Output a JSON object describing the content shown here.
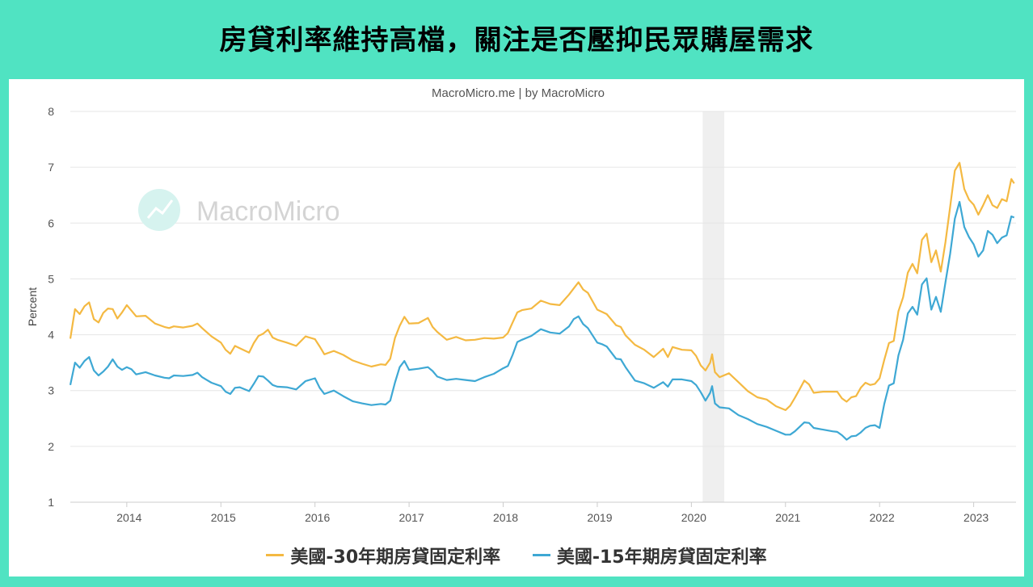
{
  "page": {
    "title": "房貸利率維持高檔，關注是否壓抑民眾購屋需求",
    "background_color": "#50e3c2"
  },
  "chart_data": {
    "type": "line",
    "subtitle": "MacroMicro.me | by MacroMicro",
    "watermark": "MacroMicro",
    "ylabel": "Percent",
    "xlabel": "",
    "ylim": [
      1,
      8
    ],
    "yticks": [
      "1",
      "2",
      "3",
      "4",
      "5",
      "6",
      "7",
      "8"
    ],
    "xlim": [
      2013.4,
      2023.45
    ],
    "xticks": [
      "2014",
      "2015",
      "2016",
      "2017",
      "2018",
      "2019",
      "2020",
      "2021",
      "2022",
      "2023"
    ],
    "grid": true,
    "legend": "bottom",
    "shaded_period": [
      2020.12,
      2020.35
    ],
    "series": [
      {
        "name": "美國-30年期房貸固定利率",
        "color": "#f4b942",
        "x": [
          2013.4,
          2013.45,
          2013.5,
          2013.55,
          2013.6,
          2013.65,
          2013.7,
          2013.75,
          2013.8,
          2013.85,
          2013.9,
          2013.95,
          2014.0,
          2014.05,
          2014.1,
          2014.2,
          2014.3,
          2014.4,
          2014.45,
          2014.5,
          2014.6,
          2014.7,
          2014.75,
          2014.8,
          2014.9,
          2015.0,
          2015.05,
          2015.1,
          2015.15,
          2015.2,
          2015.3,
          2015.35,
          2015.4,
          2015.45,
          2015.5,
          2015.55,
          2015.6,
          2015.7,
          2015.8,
          2015.9,
          2016.0,
          2016.05,
          2016.1,
          2016.2,
          2016.3,
          2016.4,
          2016.5,
          2016.6,
          2016.7,
          2016.75,
          2016.8,
          2016.85,
          2016.9,
          2016.95,
          2017.0,
          2017.1,
          2017.2,
          2017.25,
          2017.3,
          2017.4,
          2017.5,
          2017.6,
          2017.7,
          2017.8,
          2017.9,
          2018.0,
          2018.05,
          2018.1,
          2018.15,
          2018.2,
          2018.3,
          2018.4,
          2018.5,
          2018.6,
          2018.7,
          2018.75,
          2018.8,
          2018.85,
          2018.9,
          2019.0,
          2019.05,
          2019.1,
          2019.2,
          2019.25,
          2019.3,
          2019.4,
          2019.5,
          2019.6,
          2019.7,
          2019.75,
          2019.8,
          2019.9,
          2020.0,
          2020.05,
          2020.1,
          2020.15,
          2020.2,
          2020.22,
          2020.25,
          2020.3,
          2020.4,
          2020.5,
          2020.6,
          2020.7,
          2020.8,
          2020.9,
          2021.0,
          2021.05,
          2021.1,
          2021.15,
          2021.2,
          2021.25,
          2021.3,
          2021.4,
          2021.5,
          2021.55,
          2021.6,
          2021.65,
          2021.7,
          2021.75,
          2021.8,
          2021.85,
          2021.9,
          2021.95,
          2022.0,
          2022.05,
          2022.1,
          2022.15,
          2022.2,
          2022.25,
          2022.3,
          2022.35,
          2022.4,
          2022.45,
          2022.5,
          2022.55,
          2022.6,
          2022.65,
          2022.7,
          2022.75,
          2022.8,
          2022.85,
          2022.9,
          2022.95,
          2023.0,
          2023.05,
          2023.1,
          2023.15,
          2023.2,
          2023.25,
          2023.3,
          2023.35,
          2023.4,
          2023.43
        ],
        "y": [
          3.93,
          4.46,
          4.37,
          4.51,
          4.58,
          4.28,
          4.22,
          4.39,
          4.47,
          4.46,
          4.29,
          4.4,
          4.53,
          4.43,
          4.33,
          4.34,
          4.2,
          4.14,
          4.12,
          4.15,
          4.13,
          4.16,
          4.2,
          4.12,
          3.97,
          3.86,
          3.73,
          3.66,
          3.8,
          3.76,
          3.68,
          3.85,
          3.98,
          4.02,
          4.09,
          3.95,
          3.91,
          3.86,
          3.8,
          3.97,
          3.92,
          3.79,
          3.65,
          3.71,
          3.64,
          3.54,
          3.48,
          3.43,
          3.47,
          3.46,
          3.57,
          3.94,
          4.16,
          4.32,
          4.2,
          4.21,
          4.3,
          4.14,
          4.05,
          3.91,
          3.96,
          3.9,
          3.91,
          3.94,
          3.93,
          3.95,
          4.03,
          4.22,
          4.4,
          4.44,
          4.47,
          4.61,
          4.55,
          4.53,
          4.72,
          4.83,
          4.94,
          4.81,
          4.75,
          4.45,
          4.41,
          4.37,
          4.17,
          4.14,
          3.99,
          3.82,
          3.73,
          3.6,
          3.75,
          3.6,
          3.78,
          3.73,
          3.72,
          3.62,
          3.45,
          3.36,
          3.5,
          3.65,
          3.33,
          3.24,
          3.31,
          3.15,
          2.99,
          2.88,
          2.84,
          2.72,
          2.65,
          2.73,
          2.87,
          3.02,
          3.18,
          3.11,
          2.96,
          2.98,
          2.98,
          2.98,
          2.86,
          2.8,
          2.88,
          2.9,
          3.05,
          3.14,
          3.1,
          3.12,
          3.22,
          3.55,
          3.85,
          3.89,
          4.42,
          4.67,
          5.11,
          5.27,
          5.1,
          5.7,
          5.81,
          5.3,
          5.51,
          5.13,
          5.66,
          6.29,
          6.94,
          7.08,
          6.61,
          6.42,
          6.33,
          6.15,
          6.32,
          6.5,
          6.32,
          6.27,
          6.43,
          6.39,
          6.79,
          6.71
        ]
      },
      {
        "name": "美國-15年期房貸固定利率",
        "color": "#3ea8d4",
        "x": [
          2013.4,
          2013.45,
          2013.5,
          2013.55,
          2013.6,
          2013.65,
          2013.7,
          2013.75,
          2013.8,
          2013.85,
          2013.9,
          2013.95,
          2014.0,
          2014.05,
          2014.1,
          2014.2,
          2014.3,
          2014.4,
          2014.45,
          2014.5,
          2014.6,
          2014.7,
          2014.75,
          2014.8,
          2014.9,
          2015.0,
          2015.05,
          2015.1,
          2015.15,
          2015.2,
          2015.3,
          2015.35,
          2015.4,
          2015.45,
          2015.5,
          2015.55,
          2015.6,
          2015.7,
          2015.8,
          2015.9,
          2016.0,
          2016.05,
          2016.1,
          2016.2,
          2016.3,
          2016.4,
          2016.5,
          2016.6,
          2016.7,
          2016.75,
          2016.8,
          2016.85,
          2016.9,
          2016.95,
          2017.0,
          2017.1,
          2017.2,
          2017.25,
          2017.3,
          2017.4,
          2017.5,
          2017.6,
          2017.7,
          2017.8,
          2017.9,
          2018.0,
          2018.05,
          2018.1,
          2018.15,
          2018.2,
          2018.3,
          2018.4,
          2018.5,
          2018.6,
          2018.7,
          2018.75,
          2018.8,
          2018.85,
          2018.9,
          2019.0,
          2019.05,
          2019.1,
          2019.2,
          2019.25,
          2019.3,
          2019.4,
          2019.5,
          2019.6,
          2019.7,
          2019.75,
          2019.8,
          2019.9,
          2020.0,
          2020.05,
          2020.1,
          2020.15,
          2020.2,
          2020.22,
          2020.25,
          2020.3,
          2020.4,
          2020.5,
          2020.6,
          2020.7,
          2020.8,
          2020.9,
          2021.0,
          2021.05,
          2021.1,
          2021.15,
          2021.2,
          2021.25,
          2021.3,
          2021.4,
          2021.5,
          2021.55,
          2021.6,
          2021.65,
          2021.7,
          2021.75,
          2021.8,
          2021.85,
          2021.9,
          2021.95,
          2022.0,
          2022.05,
          2022.1,
          2022.15,
          2022.2,
          2022.25,
          2022.3,
          2022.35,
          2022.4,
          2022.45,
          2022.5,
          2022.55,
          2022.6,
          2022.65,
          2022.7,
          2022.75,
          2022.8,
          2022.85,
          2022.9,
          2022.95,
          2023.0,
          2023.05,
          2023.1,
          2023.15,
          2023.2,
          2023.25,
          2023.3,
          2023.35,
          2023.4,
          2023.43
        ],
        "y": [
          3.1,
          3.5,
          3.41,
          3.53,
          3.6,
          3.36,
          3.27,
          3.34,
          3.43,
          3.56,
          3.43,
          3.37,
          3.42,
          3.38,
          3.29,
          3.33,
          3.27,
          3.23,
          3.22,
          3.27,
          3.26,
          3.28,
          3.32,
          3.24,
          3.14,
          3.08,
          2.98,
          2.94,
          3.05,
          3.06,
          2.99,
          3.12,
          3.26,
          3.25,
          3.18,
          3.1,
          3.07,
          3.06,
          3.02,
          3.17,
          3.22,
          3.05,
          2.94,
          3.0,
          2.9,
          2.81,
          2.77,
          2.74,
          2.76,
          2.75,
          2.82,
          3.14,
          3.42,
          3.53,
          3.37,
          3.39,
          3.42,
          3.35,
          3.25,
          3.19,
          3.21,
          3.19,
          3.17,
          3.24,
          3.3,
          3.4,
          3.44,
          3.64,
          3.87,
          3.91,
          3.98,
          4.1,
          4.04,
          4.02,
          4.15,
          4.28,
          4.33,
          4.19,
          4.12,
          3.86,
          3.83,
          3.79,
          3.57,
          3.56,
          3.42,
          3.18,
          3.13,
          3.05,
          3.15,
          3.07,
          3.2,
          3.2,
          3.17,
          3.1,
          2.97,
          2.82,
          2.96,
          3.08,
          2.77,
          2.7,
          2.68,
          2.56,
          2.49,
          2.4,
          2.35,
          2.28,
          2.21,
          2.21,
          2.27,
          2.35,
          2.43,
          2.42,
          2.33,
          2.3,
          2.27,
          2.26,
          2.2,
          2.12,
          2.18,
          2.19,
          2.25,
          2.33,
          2.37,
          2.38,
          2.33,
          2.76,
          3.09,
          3.13,
          3.63,
          3.91,
          4.38,
          4.5,
          4.36,
          4.9,
          5.01,
          4.45,
          4.68,
          4.41,
          4.94,
          5.45,
          6.08,
          6.38,
          5.93,
          5.75,
          5.62,
          5.4,
          5.51,
          5.86,
          5.79,
          5.64,
          5.74,
          5.78,
          6.12,
          6.1
        ]
      }
    ]
  }
}
